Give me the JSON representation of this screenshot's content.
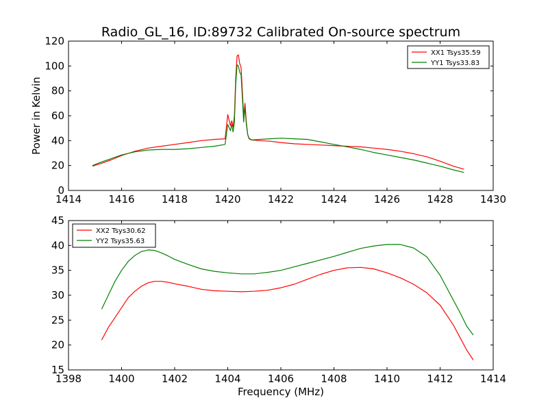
{
  "chart_data": [
    {
      "type": "line",
      "title": "Radio_GL_16, ID:89732 Calibrated On-source spectrum",
      "xlabel": "",
      "ylabel": "Power in Kelvin",
      "xlim": [
        1414,
        1430
      ],
      "ylim": [
        0,
        120
      ],
      "xticks": [
        "1414",
        "1416",
        "1418",
        "1420",
        "1422",
        "1424",
        "1426",
        "1428",
        "1430"
      ],
      "yticks": [
        "0",
        "20",
        "40",
        "60",
        "80",
        "100",
        "120"
      ],
      "legend_position": "top-right",
      "grid": false,
      "series": [
        {
          "name": "XX1 Tsys35.59",
          "color": "#ff0000",
          "x": [
            1414.9,
            1415.2,
            1415.6,
            1416.0,
            1416.5,
            1417.0,
            1417.5,
            1418.0,
            1418.5,
            1419.0,
            1419.5,
            1419.9,
            1420.0,
            1420.1,
            1420.15,
            1420.2,
            1420.25,
            1420.3,
            1420.35,
            1420.4,
            1420.45,
            1420.5,
            1420.55,
            1420.6,
            1420.65,
            1420.7,
            1420.75,
            1420.8,
            1420.9,
            1421.2,
            1421.6,
            1422.0,
            1422.5,
            1423.0,
            1423.5,
            1424.0,
            1424.5,
            1425.0,
            1425.5,
            1426.0,
            1426.5,
            1427.0,
            1427.5,
            1428.0,
            1428.5,
            1428.9
          ],
          "y": [
            19.5,
            21.5,
            24.5,
            28.0,
            31.5,
            34.0,
            35.5,
            37.0,
            38.5,
            40.0,
            41.0,
            41.5,
            61.0,
            52.0,
            56.0,
            51.0,
            60.0,
            90.0,
            108.0,
            109.0,
            102.0,
            99.0,
            80.0,
            60.0,
            70.0,
            55.0,
            45.0,
            41.5,
            40.5,
            40.0,
            39.5,
            38.5,
            37.5,
            37.0,
            36.5,
            36.0,
            35.5,
            35.0,
            34.0,
            33.0,
            31.5,
            29.5,
            27.0,
            23.5,
            19.5,
            17.0
          ]
        },
        {
          "name": "YY1 Tsys33.83",
          "color": "#008000",
          "x": [
            1414.9,
            1415.2,
            1415.6,
            1416.0,
            1416.5,
            1417.0,
            1417.5,
            1418.0,
            1418.5,
            1419.0,
            1419.5,
            1419.9,
            1420.0,
            1420.1,
            1420.15,
            1420.2,
            1420.25,
            1420.3,
            1420.35,
            1420.4,
            1420.45,
            1420.5,
            1420.55,
            1420.6,
            1420.65,
            1420.7,
            1420.75,
            1420.8,
            1420.9,
            1421.2,
            1421.6,
            1422.0,
            1422.5,
            1423.0,
            1423.5,
            1424.0,
            1424.5,
            1425.0,
            1425.5,
            1426.0,
            1426.5,
            1427.0,
            1427.5,
            1428.0,
            1428.5,
            1428.9
          ],
          "y": [
            20.0,
            22.5,
            25.5,
            28.5,
            31.0,
            32.5,
            33.0,
            33.0,
            33.5,
            34.5,
            35.5,
            37.0,
            53.0,
            48.0,
            53.0,
            47.0,
            55.0,
            85.0,
            101.0,
            100.0,
            95.0,
            93.0,
            75.0,
            55.0,
            67.0,
            53.0,
            45.0,
            42.0,
            40.5,
            41.0,
            41.5,
            42.0,
            41.5,
            41.0,
            39.0,
            37.0,
            35.0,
            33.0,
            30.5,
            28.5,
            26.5,
            24.5,
            22.0,
            19.5,
            16.5,
            14.5
          ]
        }
      ]
    },
    {
      "type": "line",
      "title": "",
      "xlabel": "Frequency (MHz)",
      "ylabel": "",
      "xlim": [
        1398,
        1414
      ],
      "ylim": [
        15,
        45
      ],
      "xticks": [
        "1398",
        "1400",
        "1402",
        "1404",
        "1406",
        "1408",
        "1410",
        "1412",
        "1414"
      ],
      "yticks": [
        "15",
        "20",
        "25",
        "30",
        "35",
        "40",
        "45"
      ],
      "legend_position": "top-left",
      "grid": false,
      "series": [
        {
          "name": "XX2 Tsys30.62",
          "color": "#ff0000",
          "x": [
            1399.25,
            1399.5,
            1399.75,
            1400.0,
            1400.25,
            1400.5,
            1400.75,
            1401.0,
            1401.25,
            1401.5,
            1401.75,
            1402.0,
            1402.5,
            1403.0,
            1403.5,
            1404.0,
            1404.5,
            1405.0,
            1405.5,
            1406.0,
            1406.5,
            1407.0,
            1407.5,
            1408.0,
            1408.5,
            1409.0,
            1409.5,
            1410.0,
            1410.5,
            1411.0,
            1411.5,
            1412.0,
            1412.25,
            1412.5,
            1412.75,
            1413.0,
            1413.25
          ],
          "y": [
            21.0,
            23.5,
            25.5,
            27.5,
            29.5,
            30.8,
            31.8,
            32.5,
            32.8,
            32.8,
            32.6,
            32.3,
            31.8,
            31.2,
            30.9,
            30.8,
            30.7,
            30.8,
            31.0,
            31.5,
            32.2,
            33.2,
            34.2,
            35.0,
            35.5,
            35.6,
            35.3,
            34.5,
            33.5,
            32.2,
            30.5,
            28.0,
            26.0,
            24.0,
            21.5,
            19.0,
            17.0
          ]
        },
        {
          "name": "YY2 Tsys35.63",
          "color": "#008000",
          "x": [
            1399.25,
            1399.5,
            1399.75,
            1400.0,
            1400.25,
            1400.5,
            1400.75,
            1401.0,
            1401.25,
            1401.5,
            1401.75,
            1402.0,
            1402.5,
            1403.0,
            1403.5,
            1404.0,
            1404.5,
            1405.0,
            1405.5,
            1406.0,
            1406.5,
            1407.0,
            1407.5,
            1408.0,
            1408.5,
            1409.0,
            1409.5,
            1410.0,
            1410.5,
            1411.0,
            1411.5,
            1412.0,
            1412.25,
            1412.5,
            1412.75,
            1413.0,
            1413.25
          ],
          "y": [
            27.2,
            30.0,
            32.8,
            35.0,
            36.8,
            38.0,
            38.8,
            39.1,
            39.0,
            38.5,
            37.9,
            37.2,
            36.2,
            35.3,
            34.8,
            34.5,
            34.3,
            34.3,
            34.6,
            35.0,
            35.7,
            36.4,
            37.1,
            37.8,
            38.6,
            39.4,
            39.9,
            40.2,
            40.2,
            39.5,
            37.7,
            34.0,
            31.5,
            29.0,
            26.5,
            23.8,
            22.0
          ]
        }
      ]
    }
  ]
}
